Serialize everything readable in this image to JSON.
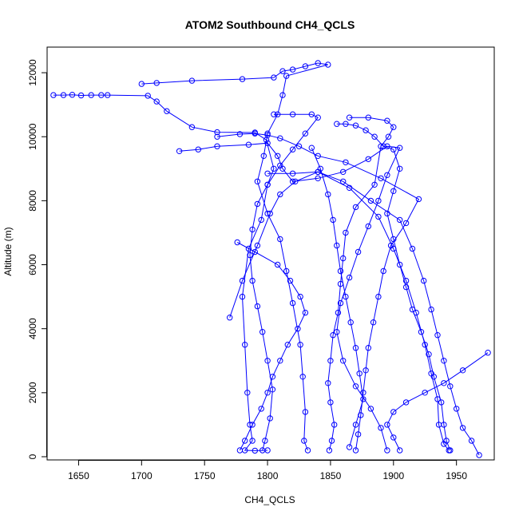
{
  "chart_data": {
    "type": "line",
    "title": "ATOM2 Southbound CH4_QCLS",
    "xlabel": "CH4_QCLS",
    "ylabel": "Altitude (m)",
    "xlim": [
      1625,
      1980
    ],
    "ylim": [
      -100,
      12800
    ],
    "x_ticks": [
      1650,
      1700,
      1750,
      1800,
      1850,
      1900,
      1950
    ],
    "y_ticks": [
      0,
      2000,
      4000,
      6000,
      8000,
      10000,
      12000
    ],
    "grid": false,
    "legend": "none",
    "marker": "open-circle",
    "colors": {
      "series": "#0000ff",
      "axis": "#000000"
    },
    "series": [
      {
        "values": [
          [
            1630,
            11300
          ],
          [
            1638,
            11300
          ],
          [
            1645,
            11310
          ],
          [
            1652,
            11290
          ],
          [
            1660,
            11300
          ],
          [
            1668,
            11300
          ],
          [
            1673,
            11300
          ],
          [
            1705,
            11280
          ],
          [
            1712,
            11100
          ],
          [
            1720,
            10800
          ],
          [
            1740,
            10300
          ],
          [
            1760,
            10140
          ],
          [
            1790,
            10130
          ],
          [
            1799,
            9900
          ],
          [
            1805,
            9000
          ],
          [
            1800,
            8500
          ],
          [
            1795,
            7400
          ],
          [
            1785,
            6500
          ],
          [
            1780,
            5000
          ],
          [
            1782,
            3500
          ],
          [
            1784,
            2000
          ],
          [
            1786,
            1000
          ],
          [
            1788,
            500
          ],
          [
            1782,
            200
          ],
          [
            1790,
            190
          ],
          [
            1800,
            200
          ]
        ]
      },
      {
        "values": [
          [
            1700,
            11650
          ],
          [
            1712,
            11680
          ],
          [
            1740,
            11750
          ],
          [
            1780,
            11800
          ],
          [
            1805,
            11850
          ],
          [
            1812,
            12050
          ],
          [
            1820,
            12100
          ],
          [
            1830,
            12200
          ],
          [
            1840,
            12300
          ],
          [
            1848,
            12250
          ],
          [
            1815,
            11900
          ],
          [
            1812,
            11300
          ],
          [
            1808,
            10700
          ],
          [
            1800,
            10100
          ],
          [
            1797,
            9400
          ],
          [
            1792,
            8600
          ],
          [
            1800,
            7600
          ],
          [
            1810,
            6800
          ],
          [
            1815,
            5800
          ],
          [
            1820,
            4800
          ],
          [
            1826,
            3500
          ],
          [
            1828,
            2500
          ],
          [
            1830,
            1400
          ],
          [
            1829,
            500
          ],
          [
            1832,
            200
          ]
        ]
      },
      {
        "values": [
          [
            1730,
            9550
          ],
          [
            1745,
            9600
          ],
          [
            1760,
            9700
          ],
          [
            1785,
            9750
          ],
          [
            1800,
            9800
          ],
          [
            1808,
            9400
          ],
          [
            1812,
            9000
          ],
          [
            1820,
            8600
          ],
          [
            1840,
            8700
          ],
          [
            1860,
            8900
          ],
          [
            1880,
            9300
          ],
          [
            1895,
            9700
          ],
          [
            1905,
            9650
          ],
          [
            1895,
            8800
          ],
          [
            1888,
            8000
          ],
          [
            1880,
            7200
          ],
          [
            1872,
            6400
          ],
          [
            1865,
            5600
          ],
          [
            1858,
            4800
          ],
          [
            1855,
            3900
          ],
          [
            1860,
            3000
          ],
          [
            1870,
            2200
          ],
          [
            1882,
            1500
          ],
          [
            1890,
            900
          ],
          [
            1895,
            200
          ]
        ]
      },
      {
        "values": [
          [
            1855,
            10400
          ],
          [
            1862,
            10400
          ],
          [
            1870,
            10350
          ],
          [
            1878,
            10200
          ],
          [
            1885,
            10000
          ],
          [
            1892,
            9700
          ],
          [
            1900,
            9600
          ],
          [
            1905,
            9000
          ],
          [
            1900,
            8300
          ],
          [
            1895,
            7600
          ],
          [
            1900,
            6800
          ],
          [
            1905,
            6000
          ],
          [
            1910,
            5300
          ],
          [
            1915,
            4600
          ],
          [
            1922,
            3900
          ],
          [
            1928,
            3200
          ],
          [
            1932,
            2500
          ],
          [
            1938,
            1700
          ],
          [
            1940,
            1000
          ],
          [
            1942,
            500
          ],
          [
            1945,
            200
          ]
        ]
      },
      {
        "values": [
          [
            1865,
            10600
          ],
          [
            1880,
            10600
          ],
          [
            1895,
            10500
          ],
          [
            1900,
            10300
          ],
          [
            1896,
            10000
          ],
          [
            1890,
            9700
          ],
          [
            1885,
            8500
          ],
          [
            1870,
            7800
          ],
          [
            1862,
            7000
          ],
          [
            1860,
            6200
          ],
          [
            1858,
            5400
          ],
          [
            1856,
            4500
          ],
          [
            1852,
            3800
          ],
          [
            1850,
            3000
          ],
          [
            1848,
            2300
          ],
          [
            1850,
            1700
          ],
          [
            1853,
            1000
          ],
          [
            1851,
            500
          ],
          [
            1849,
            200
          ]
        ]
      },
      {
        "values": [
          [
            1805,
            10700
          ],
          [
            1820,
            10700
          ],
          [
            1835,
            10700
          ],
          [
            1840,
            10600
          ],
          [
            1830,
            10100
          ],
          [
            1820,
            9600
          ],
          [
            1810,
            9100
          ],
          [
            1800,
            8500
          ],
          [
            1792,
            7900
          ],
          [
            1788,
            7100
          ],
          [
            1786,
            6300
          ],
          [
            1788,
            5500
          ],
          [
            1792,
            4700
          ],
          [
            1796,
            3900
          ],
          [
            1800,
            3000
          ],
          [
            1804,
            2100
          ],
          [
            1802,
            1200
          ],
          [
            1798,
            500
          ],
          [
            1796,
            200
          ]
        ]
      },
      {
        "values": [
          [
            1760,
            10000
          ],
          [
            1778,
            10080
          ],
          [
            1790,
            10100
          ],
          [
            1800,
            10050
          ],
          [
            1810,
            9950
          ],
          [
            1825,
            9700
          ],
          [
            1840,
            9400
          ],
          [
            1862,
            9200
          ],
          [
            1890,
            8700
          ],
          [
            1920,
            8050
          ],
          [
            1910,
            7300
          ],
          [
            1898,
            6600
          ],
          [
            1892,
            5800
          ],
          [
            1888,
            5000
          ],
          [
            1884,
            4200
          ],
          [
            1880,
            3400
          ],
          [
            1878,
            2700
          ],
          [
            1876,
            2000
          ],
          [
            1874,
            1300
          ],
          [
            1872,
            700
          ],
          [
            1870,
            200
          ]
        ]
      },
      {
        "values": [
          [
            1770,
            4350
          ],
          [
            1780,
            5500
          ],
          [
            1792,
            6600
          ],
          [
            1802,
            7600
          ],
          [
            1810,
            8200
          ],
          [
            1822,
            8600
          ],
          [
            1840,
            8900
          ],
          [
            1865,
            8400
          ],
          [
            1888,
            7500
          ],
          [
            1900,
            6500
          ],
          [
            1910,
            5500
          ],
          [
            1918,
            4500
          ],
          [
            1925,
            3500
          ],
          [
            1930,
            2600
          ],
          [
            1935,
            1800
          ],
          [
            1936,
            1000
          ],
          [
            1940,
            400
          ],
          [
            1944,
            200
          ]
        ]
      },
      {
        "values": [
          [
            1800,
            8850
          ],
          [
            1820,
            8850
          ],
          [
            1840,
            8900
          ],
          [
            1860,
            8600
          ],
          [
            1882,
            8000
          ],
          [
            1905,
            7400
          ],
          [
            1915,
            6500
          ],
          [
            1924,
            5500
          ],
          [
            1930,
            4600
          ],
          [
            1935,
            3800
          ],
          [
            1940,
            3000
          ],
          [
            1945,
            2200
          ],
          [
            1950,
            1500
          ],
          [
            1955,
            900
          ],
          [
            1962,
            500
          ],
          [
            1968,
            50
          ]
        ]
      },
      {
        "values": [
          [
            1975,
            3250
          ],
          [
            1955,
            2700
          ],
          [
            1940,
            2300
          ],
          [
            1925,
            2000
          ],
          [
            1910,
            1700
          ],
          [
            1900,
            1400
          ],
          [
            1895,
            1000
          ],
          [
            1900,
            600
          ],
          [
            1905,
            200
          ]
        ]
      },
      {
        "values": [
          [
            1835,
            9650
          ],
          [
            1842,
            9000
          ],
          [
            1848,
            8200
          ],
          [
            1852,
            7400
          ],
          [
            1855,
            6600
          ],
          [
            1858,
            5800
          ],
          [
            1862,
            5000
          ],
          [
            1866,
            4200
          ],
          [
            1870,
            3400
          ],
          [
            1873,
            2600
          ],
          [
            1876,
            1800
          ],
          [
            1870,
            1000
          ],
          [
            1865,
            300
          ]
        ]
      },
      {
        "values": [
          [
            1776,
            6700
          ],
          [
            1790,
            6400
          ],
          [
            1808,
            6000
          ],
          [
            1818,
            5500
          ],
          [
            1826,
            5000
          ],
          [
            1830,
            4500
          ],
          [
            1824,
            4000
          ],
          [
            1816,
            3500
          ],
          [
            1810,
            3000
          ],
          [
            1804,
            2500
          ],
          [
            1800,
            2000
          ],
          [
            1795,
            1500
          ],
          [
            1788,
            1000
          ],
          [
            1782,
            500
          ],
          [
            1778,
            200
          ]
        ]
      }
    ]
  }
}
